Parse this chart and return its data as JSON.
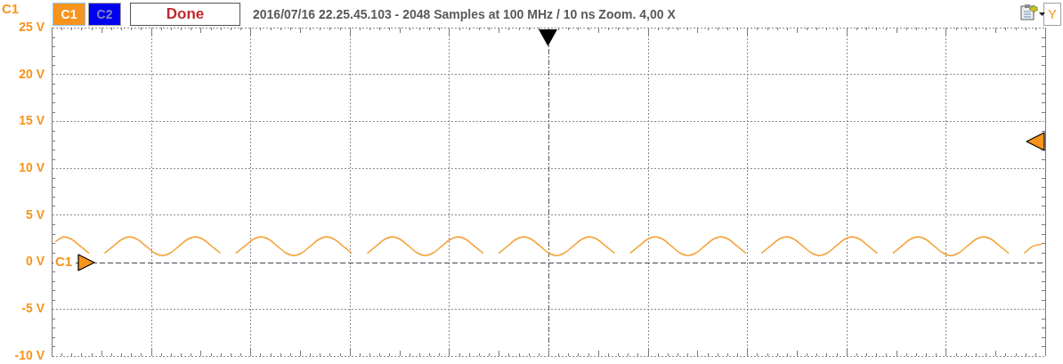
{
  "chart_data": {
    "type": "line",
    "title": "2016/07/16 22.25.45.103 - 2048 Samples at 100 MHz / 10 ns Zoom. 4,00 X",
    "ylabel": "C1",
    "annotations": [
      "C1",
      "C2",
      "Done",
      "Y"
    ],
    "ref_lines": [
      {
        "axis": "y",
        "value": 0,
        "label": "C1",
        "color": "#444444",
        "line_style": "dashed"
      }
    ],
    "categories": [
      null,
      null,
      null,
      null,
      null,
      null,
      null,
      null,
      null,
      null,
      null,
      null,
      null,
      null,
      null,
      null,
      null,
      null,
      null,
      null,
      null,
      null,
      null,
      null,
      null,
      null,
      null,
      null,
      null,
      null,
      null,
      null,
      null,
      null,
      null,
      null,
      null,
      null,
      null,
      null,
      null,
      null,
      null,
      null,
      null,
      null,
      null,
      null,
      null,
      null,
      null,
      null,
      null,
      null,
      null,
      null,
      null,
      null,
      null,
      null,
      null,
      null,
      null,
      null,
      null,
      null,
      null,
      null,
      null,
      null,
      null,
      null,
      null,
      null,
      null,
      null,
      null,
      null,
      null,
      null,
      null,
      null,
      null,
      null,
      null,
      null,
      null,
      null,
      null,
      null,
      null,
      null,
      null,
      null,
      null,
      null,
      null,
      null,
      null,
      null,
      null,
      null,
      null,
      null,
      null,
      null,
      null,
      null,
      null,
      null,
      null,
      null,
      null,
      null,
      null,
      null,
      null,
      null,
      null,
      null,
      null
    ],
    "series": [
      {
        "color": "#f4a640",
        "values": [
          2.2,
          2.7,
          2.4,
          1.7,
          1.0,
          null,
          1.0,
          1.7,
          2.4,
          2.7,
          2.4,
          1.7,
          1.0,
          0.7,
          1.0,
          1.7,
          2.4,
          2.7,
          2.4,
          1.7,
          1.0,
          null,
          1.0,
          1.7,
          2.4,
          2.7,
          2.4,
          1.7,
          1.0,
          0.7,
          1.0,
          1.7,
          2.4,
          2.7,
          2.4,
          1.7,
          1.0,
          null,
          1.0,
          1.7,
          2.4,
          2.7,
          2.4,
          1.7,
          1.0,
          0.7,
          1.0,
          1.7,
          2.4,
          2.7,
          2.4,
          1.7,
          1.0,
          null,
          1.0,
          1.7,
          2.4,
          2.7,
          2.4,
          1.7,
          1.0,
          0.7,
          1.0,
          1.7,
          2.4,
          2.7,
          2.4,
          1.7,
          1.0,
          null,
          1.0,
          1.7,
          2.4,
          2.7,
          2.4,
          1.7,
          1.0,
          0.7,
          1.0,
          1.7,
          2.4,
          2.7,
          2.4,
          1.7,
          1.0,
          null,
          1.0,
          1.7,
          2.4,
          2.7,
          2.4,
          1.7,
          1.0,
          0.7,
          1.0,
          1.7,
          2.4,
          2.7,
          2.4,
          1.7,
          1.0,
          null,
          1.0,
          1.7,
          2.4,
          2.7,
          2.4,
          1.7,
          1.0,
          0.7,
          1.0,
          1.7,
          2.4,
          2.7,
          2.4,
          1.7,
          1.0,
          null,
          1.0,
          1.7,
          1.9
        ]
      }
    ],
    "ylim": [
      -10,
      25
    ],
    "yticks": [
      {
        "value": 25,
        "label": "25 V"
      },
      {
        "value": 20,
        "label": "20 V"
      },
      {
        "value": 15,
        "label": "15 V"
      },
      {
        "value": 10,
        "label": "10 V"
      },
      {
        "value": 5,
        "label": "5 V"
      },
      {
        "value": 0,
        "label": "0 V"
      },
      {
        "value": -5,
        "label": "-5 V"
      },
      {
        "value": -10,
        "label": "-10 V"
      }
    ],
    "grid": true,
    "marker": "none",
    "line_style": "solid"
  }
}
